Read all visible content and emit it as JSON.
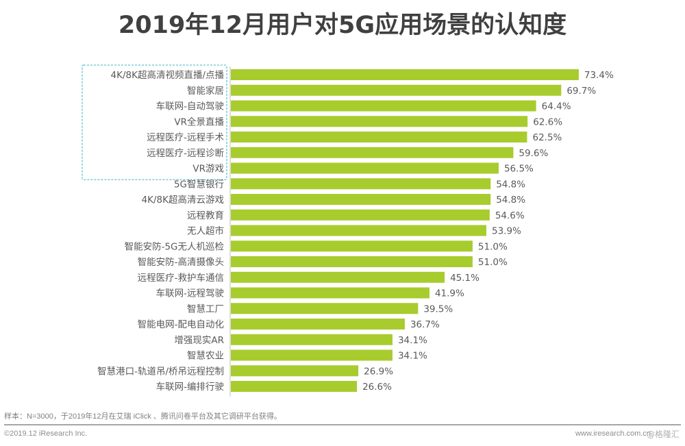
{
  "title": "2019年12月用户对5G应用场景的认知度",
  "chart_data": {
    "type": "bar",
    "orientation": "horizontal",
    "title": "2019年12月用户对5G应用场景的认知度",
    "xlabel": "",
    "ylabel": "",
    "unit": "%",
    "xlim": [
      0,
      80
    ],
    "grid": false,
    "legend": "none",
    "bar_color": "#a8cc2e",
    "highlight_color": "#5bc3d6",
    "highlighted_categories_count": 7,
    "categories": [
      "4K/8K超高清视频直播/点播",
      "智能家居",
      "车联网-自动驾驶",
      "VR全景直播",
      "远程医疗-远程手术",
      "远程医疗-远程诊断",
      "VR游戏",
      "5G智慧银行",
      "4K/8K超高清云游戏",
      "远程教育",
      "无人超市",
      "智能安防-5G无人机巡检",
      "智能安防-高清摄像头",
      "远程医疗-救护车通信",
      "车联网-远程驾驶",
      "智慧工厂",
      "智能电网-配电自动化",
      "增强现实AR",
      "智慧农业",
      "智慧港口-轨道吊/桥吊远程控制",
      "车联网-编排行驶"
    ],
    "values": [
      73.4,
      69.7,
      64.4,
      62.6,
      62.5,
      59.6,
      56.5,
      54.8,
      54.8,
      54.6,
      53.9,
      51.0,
      51.0,
      45.1,
      41.9,
      39.5,
      36.7,
      34.1,
      34.1,
      26.9,
      26.6
    ],
    "value_labels": [
      "73.4%",
      "69.7%",
      "64.4%",
      "62.6%",
      "62.5%",
      "59.6%",
      "56.5%",
      "54.8%",
      "54.8%",
      "54.6%",
      "53.9%",
      "51.0%",
      "51.0%",
      "45.1%",
      "41.9%",
      "39.5%",
      "36.7%",
      "34.1%",
      "34.1%",
      "26.9%",
      "26.6%"
    ]
  },
  "footer": {
    "note": "样本：N=3000，于2019年12月在艾瑞 iClick 、腾讯问卷平台及其它调研平台获得。",
    "copyright": "©2019.12 iResearch Inc.",
    "website": "www.iresearch.com.cn",
    "watermark": "@格隆汇"
  }
}
